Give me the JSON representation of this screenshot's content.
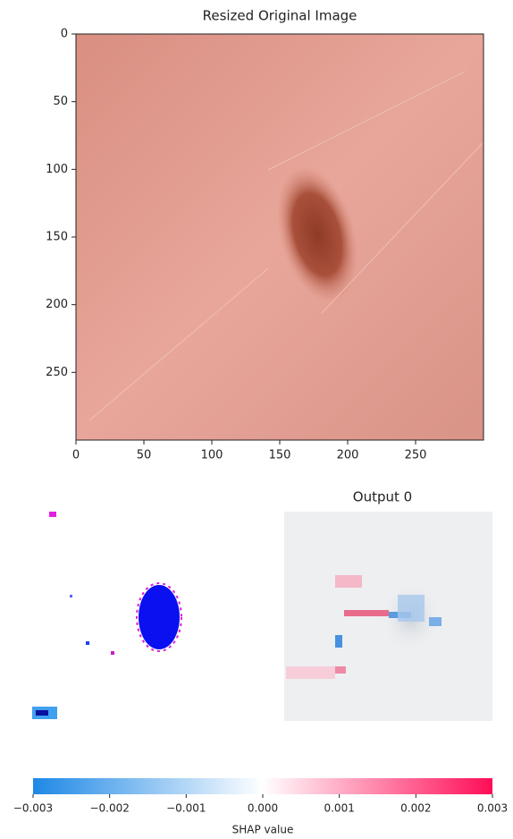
{
  "chart_data": [
    {
      "type": "image",
      "title": "Resized Original Image",
      "xlim": [
        0,
        300
      ],
      "ylim": [
        300,
        0
      ],
      "xticks": [
        0,
        50,
        100,
        150,
        200,
        250
      ],
      "yticks": [
        0,
        50,
        100,
        150,
        200,
        250
      ]
    },
    {
      "type": "image",
      "title": "Output 0"
    },
    {
      "type": "colorbar",
      "xlabel": "SHAP value",
      "xlim": [
        -0.003,
        0.003
      ],
      "colors": [
        "#1e88e5",
        "#ffffff",
        "#ff0d57"
      ],
      "xticks": [
        {
          "value": -0.003,
          "label": "−0.003"
        },
        {
          "value": -0.002,
          "label": "−0.002"
        },
        {
          "value": -0.001,
          "label": "−0.001"
        },
        {
          "value": 0,
          "label": "0.000"
        },
        {
          "value": 0.001,
          "label": "0.001"
        },
        {
          "value": 0.002,
          "label": "0.002"
        },
        {
          "value": 0.003,
          "label": "0.003"
        }
      ]
    }
  ]
}
